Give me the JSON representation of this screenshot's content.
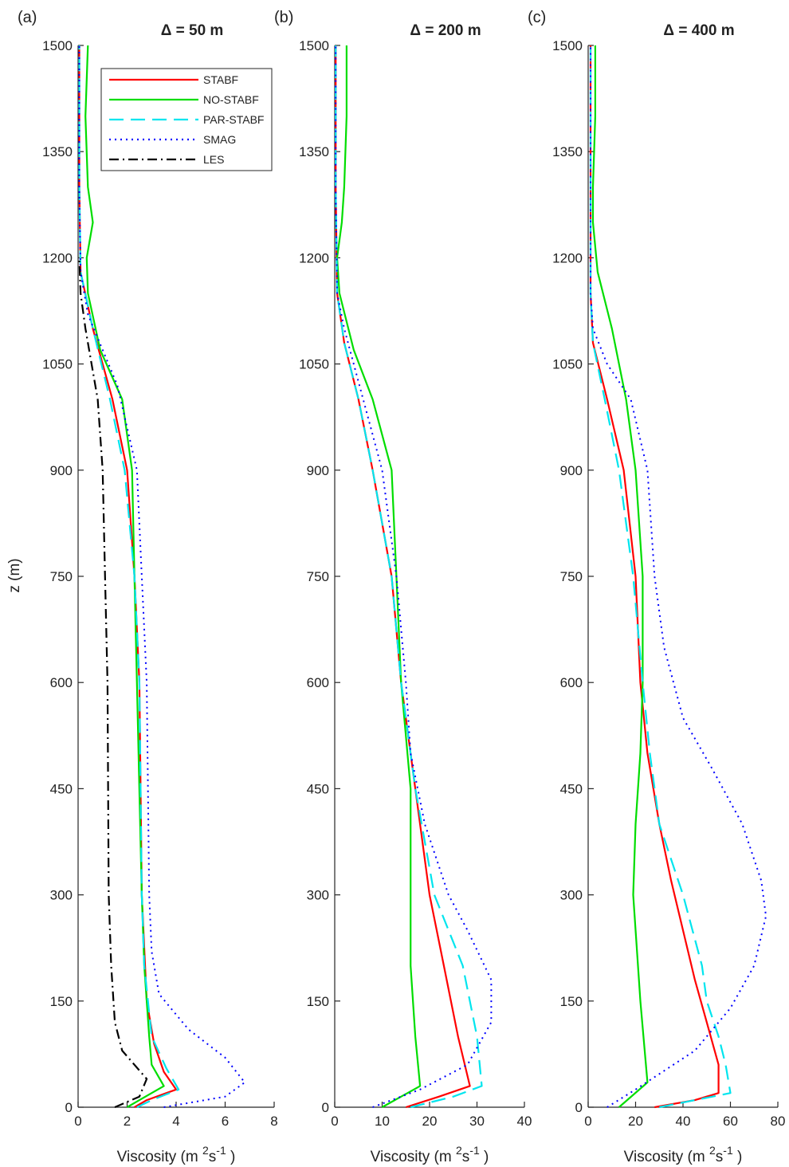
{
  "figure": {
    "ylabel": "z (m)",
    "xlabel_main": "Viscosity (m",
    "xlabel_sup1": "2",
    "xlabel_mid": "s",
    "xlabel_sup2": "-1",
    "xlabel_end": ")"
  },
  "legend": {
    "items": [
      {
        "name": "STABF",
        "color": "#ff0000",
        "dash": "solid"
      },
      {
        "name": "NO-STABF",
        "color": "#00dd00",
        "dash": "solid"
      },
      {
        "name": "PAR-STABF",
        "color": "#00e5ee",
        "dash": "dashed"
      },
      {
        "name": "SMAG",
        "color": "#0000ff",
        "dash": "dotted"
      },
      {
        "name": "LES",
        "color": "#000000",
        "dash": "dashdot"
      }
    ]
  },
  "chart_data": [
    {
      "type": "line",
      "panel_label": "(a)",
      "title": "Δ = 50 m",
      "xlim": [
        0,
        8
      ],
      "xticks": [
        0,
        2,
        4,
        6,
        8
      ],
      "ylim": [
        0,
        1500
      ],
      "yticks": [
        0,
        150,
        300,
        450,
        600,
        750,
        900,
        1050,
        1200,
        1350,
        1500
      ],
      "legend": true,
      "series": [
        {
          "name": "STABF",
          "points": [
            [
              2.3,
              0
            ],
            [
              2.8,
              10
            ],
            [
              4.0,
              25
            ],
            [
              3.5,
              50
            ],
            [
              3.1,
              90
            ],
            [
              2.8,
              150
            ],
            [
              2.6,
              300
            ],
            [
              2.5,
              600
            ],
            [
              2.3,
              750
            ],
            [
              2.0,
              900
            ],
            [
              1.4,
              1000
            ],
            [
              0.6,
              1100
            ],
            [
              0.1,
              1180
            ],
            [
              0.05,
              1300
            ],
            [
              0.05,
              1500
            ]
          ]
        },
        {
          "name": "NO-STABF",
          "points": [
            [
              2.0,
              0
            ],
            [
              2.5,
              10
            ],
            [
              3.5,
              30
            ],
            [
              3.0,
              60
            ],
            [
              2.9,
              100
            ],
            [
              2.7,
              200
            ],
            [
              2.6,
              300
            ],
            [
              2.4,
              600
            ],
            [
              2.3,
              750
            ],
            [
              2.2,
              900
            ],
            [
              1.8,
              1000
            ],
            [
              0.9,
              1070
            ],
            [
              0.4,
              1150
            ],
            [
              0.35,
              1200
            ],
            [
              0.6,
              1250
            ],
            [
              0.4,
              1300
            ],
            [
              0.3,
              1400
            ],
            [
              0.4,
              1500
            ]
          ]
        },
        {
          "name": "PAR-STABF",
          "points": [
            [
              2.4,
              0
            ],
            [
              3.0,
              10
            ],
            [
              4.1,
              25
            ],
            [
              3.6,
              55
            ],
            [
              3.0,
              100
            ],
            [
              2.7,
              200
            ],
            [
              2.6,
              300
            ],
            [
              2.5,
              600
            ],
            [
              2.3,
              750
            ],
            [
              1.9,
              900
            ],
            [
              1.3,
              1000
            ],
            [
              0.6,
              1100
            ],
            [
              0.1,
              1180
            ],
            [
              0.05,
              1300
            ],
            [
              0.05,
              1500
            ]
          ]
        },
        {
          "name": "SMAG",
          "points": [
            [
              3.5,
              0
            ],
            [
              6.0,
              15
            ],
            [
              6.8,
              35
            ],
            [
              6.0,
              70
            ],
            [
              4.5,
              110
            ],
            [
              3.3,
              160
            ],
            [
              3.0,
              220
            ],
            [
              2.9,
              300
            ],
            [
              2.8,
              600
            ],
            [
              2.6,
              750
            ],
            [
              2.4,
              900
            ],
            [
              1.6,
              1020
            ],
            [
              0.4,
              1120
            ],
            [
              0.1,
              1180
            ],
            [
              0.05,
              1300
            ],
            [
              0.05,
              1500
            ]
          ]
        },
        {
          "name": "LES",
          "points": [
            [
              1.5,
              0
            ],
            [
              2.5,
              15
            ],
            [
              2.8,
              40
            ],
            [
              1.8,
              80
            ],
            [
              1.5,
              120
            ],
            [
              1.35,
              200
            ],
            [
              1.25,
              300
            ],
            [
              1.2,
              600
            ],
            [
              1.1,
              750
            ],
            [
              1.0,
              900
            ],
            [
              0.8,
              1000
            ],
            [
              0.3,
              1100
            ],
            [
              0.1,
              1150
            ],
            [
              0.05,
              1200
            ]
          ]
        }
      ]
    },
    {
      "type": "line",
      "panel_label": "(b)",
      "title": "Δ = 200 m",
      "xlim": [
        0,
        40
      ],
      "xticks": [
        0,
        10,
        20,
        30,
        40
      ],
      "ylim": [
        0,
        1500
      ],
      "yticks": [
        0,
        150,
        300,
        450,
        600,
        750,
        900,
        1050,
        1200,
        1350,
        1500
      ],
      "legend": false,
      "series": [
        {
          "name": "STABF",
          "points": [
            [
              15,
              0
            ],
            [
              22,
              15
            ],
            [
              28.5,
              30
            ],
            [
              26,
              100
            ],
            [
              23,
              200
            ],
            [
              20,
              300
            ],
            [
              17,
              450
            ],
            [
              14,
              600
            ],
            [
              12,
              750
            ],
            [
              8,
              900
            ],
            [
              5,
              1000
            ],
            [
              2,
              1080
            ],
            [
              0.5,
              1150
            ],
            [
              0.2,
              1300
            ],
            [
              0.2,
              1500
            ]
          ]
        },
        {
          "name": "NO-STABF",
          "points": [
            [
              10,
              0
            ],
            [
              14,
              15
            ],
            [
              18,
              30
            ],
            [
              17,
              100
            ],
            [
              16,
              200
            ],
            [
              16,
              300
            ],
            [
              16,
              450
            ],
            [
              14,
              600
            ],
            [
              13,
              750
            ],
            [
              12,
              900
            ],
            [
              8,
              1000
            ],
            [
              4,
              1070
            ],
            [
              1,
              1150
            ],
            [
              0.5,
              1200
            ],
            [
              1.5,
              1250
            ],
            [
              2,
              1300
            ],
            [
              2.5,
              1400
            ],
            [
              2.5,
              1500
            ]
          ]
        },
        {
          "name": "PAR-STABF",
          "points": [
            [
              16,
              0
            ],
            [
              25,
              15
            ],
            [
              31,
              30
            ],
            [
              30,
              100
            ],
            [
              27,
              200
            ],
            [
              21,
              300
            ],
            [
              17,
              450
            ],
            [
              14,
              600
            ],
            [
              12,
              750
            ],
            [
              8,
              900
            ],
            [
              5,
              1000
            ],
            [
              2,
              1080
            ],
            [
              0.5,
              1150
            ],
            [
              0.2,
              1300
            ],
            [
              0.2,
              1500
            ]
          ]
        },
        {
          "name": "SMAG",
          "points": [
            [
              8,
              0
            ],
            [
              18,
              25
            ],
            [
              28,
              60
            ],
            [
              33,
              120
            ],
            [
              33,
              180
            ],
            [
              28,
              250
            ],
            [
              24,
              300
            ],
            [
              19,
              400
            ],
            [
              16,
              500
            ],
            [
              15,
              600
            ],
            [
              13,
              750
            ],
            [
              10,
              900
            ],
            [
              6,
              1000
            ],
            [
              2,
              1100
            ],
            [
              0.5,
              1150
            ],
            [
              0.2,
              1300
            ],
            [
              0.2,
              1500
            ]
          ]
        }
      ]
    },
    {
      "type": "line",
      "panel_label": "(c)",
      "title": "Δ = 400 m",
      "xlim": [
        0,
        80
      ],
      "xticks": [
        0,
        20,
        40,
        60,
        80
      ],
      "ylim": [
        0,
        1500
      ],
      "yticks": [
        0,
        150,
        300,
        450,
        600,
        750,
        900,
        1050,
        1200,
        1350,
        1500
      ],
      "legend": false,
      "series": [
        {
          "name": "STABF",
          "points": [
            [
              28,
              0
            ],
            [
              45,
              10
            ],
            [
              55,
              20
            ],
            [
              55,
              60
            ],
            [
              50,
              120
            ],
            [
              45,
              180
            ],
            [
              40,
              250
            ],
            [
              35,
              320
            ],
            [
              30,
              400
            ],
            [
              25,
              500
            ],
            [
              22,
              600
            ],
            [
              20,
              750
            ],
            [
              15,
              900
            ],
            [
              8,
              1000
            ],
            [
              2,
              1080
            ],
            [
              1,
              1150
            ],
            [
              1,
              1300
            ],
            [
              1,
              1500
            ]
          ]
        },
        {
          "name": "NO-STABF",
          "points": [
            [
              13,
              0
            ],
            [
              25,
              35
            ],
            [
              22,
              150
            ],
            [
              20,
              250
            ],
            [
              19,
              300
            ],
            [
              20,
              400
            ],
            [
              22,
              500
            ],
            [
              23,
              600
            ],
            [
              23,
              750
            ],
            [
              20,
              900
            ],
            [
              16,
              1000
            ],
            [
              10,
              1100
            ],
            [
              4,
              1180
            ],
            [
              2,
              1250
            ],
            [
              2,
              1300
            ],
            [
              3,
              1400
            ],
            [
              3,
              1500
            ]
          ]
        },
        {
          "name": "PAR-STABF",
          "points": [
            [
              30,
              0
            ],
            [
              45,
              10
            ],
            [
              60,
              20
            ],
            [
              58,
              60
            ],
            [
              55,
              100
            ],
            [
              50,
              150
            ],
            [
              48,
              200
            ],
            [
              40,
              300
            ],
            [
              30,
              400
            ],
            [
              26,
              500
            ],
            [
              23,
              600
            ],
            [
              19,
              750
            ],
            [
              13,
              900
            ],
            [
              7,
              1000
            ],
            [
              2,
              1080
            ],
            [
              1,
              1150
            ],
            [
              1,
              1300
            ],
            [
              1,
              1500
            ]
          ]
        },
        {
          "name": "SMAG",
          "points": [
            [
              8,
              0
            ],
            [
              20,
              25
            ],
            [
              45,
              80
            ],
            [
              60,
              140
            ],
            [
              70,
              200
            ],
            [
              75,
              270
            ],
            [
              73,
              320
            ],
            [
              65,
              400
            ],
            [
              52,
              480
            ],
            [
              40,
              550
            ],
            [
              32,
              650
            ],
            [
              28,
              750
            ],
            [
              25,
              900
            ],
            [
              18,
              1000
            ],
            [
              8,
              1050
            ],
            [
              2,
              1100
            ],
            [
              1,
              1150
            ],
            [
              1,
              1300
            ],
            [
              1,
              1500
            ]
          ]
        }
      ]
    }
  ]
}
